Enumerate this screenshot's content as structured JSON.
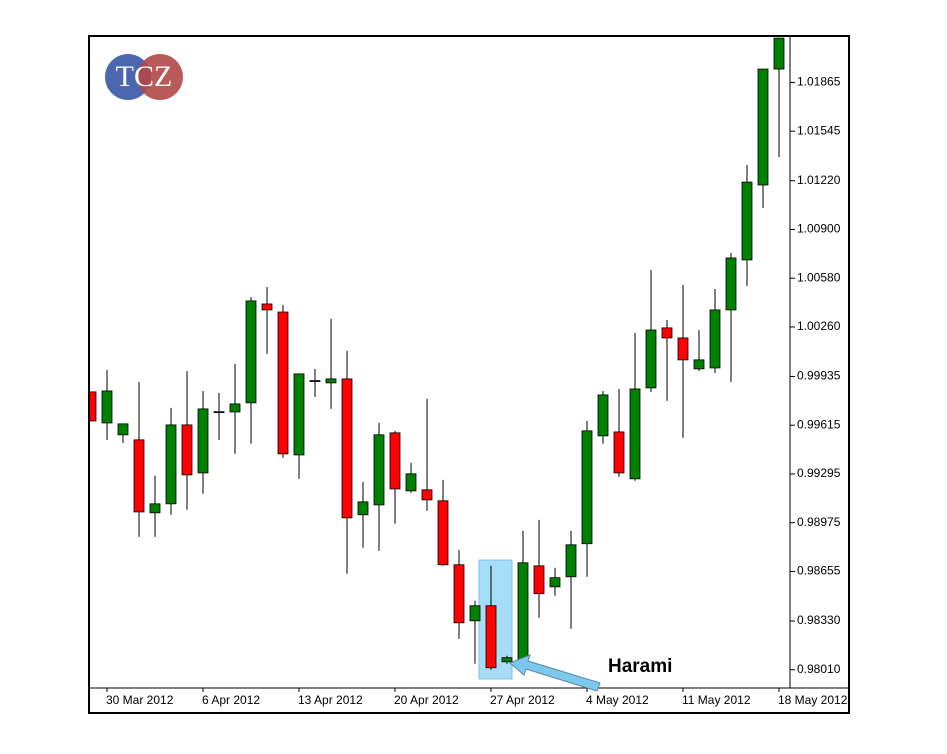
{
  "chart_data": {
    "type": "candlestick",
    "logo": "TCZ",
    "annotation": "Harami",
    "categories": [
      null,
      "30 Mar 2012",
      null,
      null,
      null,
      null,
      null,
      "6 Apr 2012",
      null,
      null,
      null,
      null,
      null,
      "13 Apr 2012",
      null,
      null,
      null,
      null,
      null,
      "20 Apr 2012",
      null,
      null,
      null,
      null,
      null,
      "27 Apr 2012",
      null,
      null,
      null,
      null,
      null,
      "4 May 2012",
      null,
      null,
      null,
      null,
      null,
      "11 May 2012",
      null,
      null,
      null,
      null,
      null,
      "18 May 2012"
    ],
    "open": [
      0.99834,
      0.9963,
      0.99552,
      0.99519,
      0.9904,
      0.99099,
      0.99617,
      0.99302,
      0.99702,
      0.99702,
      0.99762,
      1.00411,
      1.00358,
      0.9942,
      0.99906,
      0.99893,
      0.99919,
      0.99027,
      0.99092,
      0.99565,
      0.99184,
      0.99191,
      0.99119,
      0.98699,
      0.98331,
      0.9843,
      0.98062,
      0.98069,
      0.98692,
      0.98554,
      0.9862,
      0.98837,
      0.99545,
      0.99571,
      0.99263,
      0.9986,
      1.00254,
      1.00188,
      0.99985,
      0.99991,
      1.00372,
      1.007,
      1.01192,
      1.01953
    ],
    "high": [
      0.99834,
      0.99978,
      0.99624,
      0.99899,
      0.99283,
      0.99729,
      0.99971,
      0.9984,
      0.99827,
      1.00017,
      1.00457,
      1.00522,
      1.00404,
      0.99952,
      0.99985,
      1.00313,
      1.00103,
      0.99243,
      0.9963,
      0.99578,
      0.99368,
      0.99788,
      0.99256,
      0.98797,
      0.98463,
      0.98692,
      0.98102,
      0.98922,
      0.98994,
      0.98679,
      0.98922,
      0.99643,
      0.9984,
      0.99853,
      1.00221,
      1.00634,
      1.00306,
      1.00536,
      1.0024,
      1.00509,
      1.00746,
      1.01323,
      1.01953,
      1.02156
    ],
    "low": [
      0.99643,
      0.99519,
      0.99499,
      0.98882,
      0.98882,
      0.99027,
      0.9906,
      0.99165,
      0.99519,
      0.99427,
      0.99493,
      1.00083,
      0.99401,
      0.99263,
      0.99801,
      0.99722,
      0.9864,
      0.9881,
      0.98791,
      0.98968,
      0.99171,
      0.99053,
      0.98692,
      0.98213,
      0.98049,
      0.9801,
      0.98049,
      0.98062,
      0.98351,
      0.98495,
      0.98279,
      0.9862,
      0.99493,
      0.99276,
      0.9925,
      0.99834,
      0.99775,
      0.99532,
      0.99971,
      0.99958,
      0.99899,
      1.00529,
      1.01041,
      1.01375
    ],
    "close": [
      0.99643,
      0.9984,
      0.99624,
      0.99046,
      0.99099,
      0.99617,
      0.99289,
      0.99722,
      0.99704,
      0.99755,
      1.00431,
      1.00372,
      0.99427,
      0.99952,
      0.99908,
      0.99919,
      0.99007,
      0.99112,
      0.99552,
      0.99197,
      0.99296,
      0.99125,
      0.98699,
      0.98318,
      0.9843,
      0.98023,
      0.98089,
      0.98712,
      0.98509,
      0.98614,
      0.9883,
      0.99578,
      0.99814,
      0.99302,
      0.99853,
      1.0024,
      1.00188,
      1.00044,
      1.00044,
      1.00372,
      1.00713,
      1.01211,
      1.01953,
      1.02156
    ],
    "up_color": "#008000",
    "down_color": "#ff0000",
    "ylim": [
      0.9789,
      1.0217
    ],
    "yticks": [
      {
        "value": 0.9801,
        "label": "0.98010"
      },
      {
        "value": 0.9833,
        "label": "0.98330"
      },
      0.98655,
      0.98975,
      0.99295,
      0.99615,
      0.99935,
      {
        "value": 1.0026,
        "label": "1.00260"
      },
      {
        "value": 1.0058,
        "label": "1.00580"
      },
      {
        "value": 1.009,
        "label": "1.00900"
      },
      {
        "value": 1.0122,
        "label": "1.01220"
      },
      1.01545,
      1.01865
    ]
  }
}
